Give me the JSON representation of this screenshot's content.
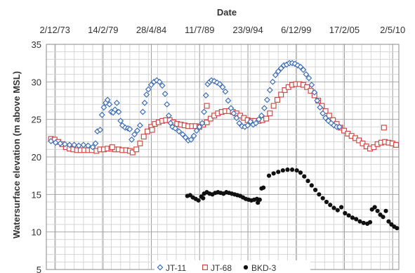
{
  "chart_data": {
    "type": "scatter",
    "title": "",
    "xlabel": "Date",
    "ylabel": "Watersurface elevation (m above MSL)",
    "x_axis_position": "top",
    "x_unit": "year",
    "xlim": [
      1973.0,
      2011.0
    ],
    "ylim": [
      5,
      35
    ],
    "yticks": [
      5,
      10,
      15,
      20,
      25,
      30,
      35
    ],
    "xticks": [
      {
        "label": "2/12/73",
        "value": 1973.92
      },
      {
        "label": "14/2/79",
        "value": 1979.12
      },
      {
        "label": "28/4/84",
        "value": 1984.32
      },
      {
        "label": "11/7/89",
        "value": 1989.52
      },
      {
        "label": "23/9/94",
        "value": 1994.73
      },
      {
        "label": "6/12/99",
        "value": 1999.93
      },
      {
        "label": "17/2/05",
        "value": 2005.13
      },
      {
        "label": "2/5/10",
        "value": 2010.33
      }
    ],
    "grid": true,
    "legend_position": "bottom",
    "series": [
      {
        "name": "JT-11",
        "marker": "diamond-open",
        "color": "#3f6fb5",
        "points": [
          [
            1973.5,
            22.1
          ],
          [
            1974.0,
            21.9
          ],
          [
            1974.5,
            21.8
          ],
          [
            1975.0,
            21.7
          ],
          [
            1975.5,
            21.6
          ],
          [
            1976.0,
            21.6
          ],
          [
            1976.5,
            21.5
          ],
          [
            1977.0,
            21.6
          ],
          [
            1977.5,
            21.5
          ],
          [
            1978.0,
            21.3
          ],
          [
            1978.3,
            21.8
          ],
          [
            1978.5,
            23.4
          ],
          [
            1978.8,
            23.6
          ],
          [
            1979.0,
            25.6
          ],
          [
            1979.2,
            26.6
          ],
          [
            1979.4,
            27.2
          ],
          [
            1979.6,
            27.6
          ],
          [
            1979.8,
            27.0
          ],
          [
            1980.0,
            26.0
          ],
          [
            1980.2,
            25.9
          ],
          [
            1980.4,
            26.3
          ],
          [
            1980.6,
            27.2
          ],
          [
            1980.8,
            26.0
          ],
          [
            1981.0,
            24.8
          ],
          [
            1981.2,
            24.2
          ],
          [
            1981.5,
            23.9
          ],
          [
            1981.8,
            23.8
          ],
          [
            1982.0,
            23.7
          ],
          [
            1982.2,
            22.3
          ],
          [
            1982.5,
            23.0
          ],
          [
            1982.8,
            23.5
          ],
          [
            1983.1,
            24.2
          ],
          [
            1983.4,
            26.0
          ],
          [
            1983.6,
            27.2
          ],
          [
            1983.8,
            28.3
          ],
          [
            1984.0,
            29.0
          ],
          [
            1984.3,
            29.6
          ],
          [
            1984.6,
            30.0
          ],
          [
            1984.9,
            30.2
          ],
          [
            1985.2,
            30.0
          ],
          [
            1985.5,
            29.5
          ],
          [
            1985.8,
            28.4
          ],
          [
            1986.0,
            27.0
          ],
          [
            1986.2,
            25.5
          ],
          [
            1986.4,
            24.5
          ],
          [
            1986.6,
            24.0
          ],
          [
            1986.9,
            23.8
          ],
          [
            1987.3,
            23.4
          ],
          [
            1987.7,
            23.0
          ],
          [
            1988.0,
            22.6
          ],
          [
            1988.3,
            22.2
          ],
          [
            1988.6,
            22.3
          ],
          [
            1988.9,
            22.8
          ],
          [
            1989.2,
            23.5
          ],
          [
            1989.5,
            24.0
          ],
          [
            1989.8,
            24.5
          ],
          [
            1990.0,
            26.0
          ],
          [
            1990.2,
            28.2
          ],
          [
            1990.4,
            29.7
          ],
          [
            1990.6,
            30.0
          ],
          [
            1990.8,
            30.2
          ],
          [
            1991.1,
            30.1
          ],
          [
            1991.4,
            29.9
          ],
          [
            1991.7,
            29.7
          ],
          [
            1992.0,
            29.3
          ],
          [
            1992.3,
            28.7
          ],
          [
            1992.6,
            27.5
          ],
          [
            1992.9,
            26.5
          ],
          [
            1993.2,
            25.8
          ],
          [
            1993.5,
            25.2
          ],
          [
            1993.8,
            24.5
          ],
          [
            1994.1,
            24.1
          ],
          [
            1994.4,
            24.0
          ],
          [
            1994.7,
            24.2
          ],
          [
            1995.0,
            24.7
          ],
          [
            1995.3,
            24.3
          ],
          [
            1995.6,
            24.5
          ],
          [
            1995.9,
            25.0
          ],
          [
            1996.2,
            25.5
          ],
          [
            1996.5,
            26.5
          ],
          [
            1996.8,
            27.6
          ],
          [
            1997.1,
            28.9
          ],
          [
            1997.4,
            30.0
          ],
          [
            1997.7,
            30.9
          ],
          [
            1998.0,
            31.4
          ],
          [
            1998.3,
            31.8
          ],
          [
            1998.6,
            32.2
          ],
          [
            1998.9,
            32.3
          ],
          [
            1999.2,
            32.5
          ],
          [
            1999.5,
            32.5
          ],
          [
            1999.8,
            32.4
          ],
          [
            2000.1,
            32.2
          ],
          [
            2000.4,
            32.0
          ],
          [
            2000.7,
            31.6
          ],
          [
            2001.0,
            31.0
          ],
          [
            2001.3,
            30.5
          ],
          [
            2001.6,
            29.6
          ],
          [
            2001.9,
            28.6
          ],
          [
            2002.2,
            27.5
          ],
          [
            2002.5,
            26.6
          ],
          [
            2002.8,
            25.8
          ],
          [
            2003.1,
            25.2
          ],
          [
            2003.4,
            24.8
          ],
          [
            2003.7,
            24.5
          ],
          [
            2004.0,
            24.2
          ],
          [
            2004.3,
            24.0
          ],
          [
            2004.6,
            24.0
          ]
        ]
      },
      {
        "name": "JT-68",
        "marker": "square-open",
        "color": "#d04a45",
        "points": [
          [
            1973.5,
            22.4
          ],
          [
            1973.9,
            22.3
          ],
          [
            1974.3,
            22.0
          ],
          [
            1974.7,
            21.7
          ],
          [
            1975.1,
            21.3
          ],
          [
            1975.5,
            21.1
          ],
          [
            1975.9,
            21.0
          ],
          [
            1976.3,
            20.9
          ],
          [
            1976.7,
            20.9
          ],
          [
            1977.1,
            20.9
          ],
          [
            1977.5,
            20.9
          ],
          [
            1977.9,
            20.9
          ],
          [
            1978.4,
            20.8
          ],
          [
            1978.8,
            21.0
          ],
          [
            1979.2,
            21.0
          ],
          [
            1979.6,
            21.1
          ],
          [
            1980.0,
            21.1
          ],
          [
            1980.4,
            21.0
          ],
          [
            1980.8,
            21.0
          ],
          [
            1981.2,
            20.9
          ],
          [
            1981.6,
            20.9
          ],
          [
            1982.0,
            20.8
          ],
          [
            1982.3,
            20.6
          ],
          [
            1982.7,
            21.0
          ],
          [
            1983.1,
            21.8
          ],
          [
            1983.5,
            22.7
          ],
          [
            1983.9,
            23.4
          ],
          [
            1984.3,
            24.0
          ],
          [
            1984.7,
            24.4
          ],
          [
            1985.1,
            24.6
          ],
          [
            1985.5,
            24.8
          ],
          [
            1985.9,
            24.9
          ],
          [
            1986.3,
            24.9
          ],
          [
            1986.7,
            24.6
          ],
          [
            1987.1,
            24.4
          ],
          [
            1987.5,
            24.3
          ],
          [
            1987.9,
            24.2
          ],
          [
            1988.3,
            24.1
          ],
          [
            1988.7,
            24.1
          ],
          [
            1989.1,
            24.1
          ],
          [
            1989.5,
            24.0
          ],
          [
            1989.9,
            24.3
          ],
          [
            1990.3,
            24.6
          ],
          [
            1990.7,
            25.1
          ],
          [
            1991.1,
            25.5
          ],
          [
            1991.5,
            25.8
          ],
          [
            1991.9,
            26.0
          ],
          [
            1992.3,
            26.1
          ],
          [
            1992.7,
            26.1
          ],
          [
            1993.1,
            26.0
          ],
          [
            1993.5,
            25.8
          ],
          [
            1993.9,
            25.5
          ],
          [
            1994.3,
            25.2
          ],
          [
            1994.7,
            24.9
          ],
          [
            1995.1,
            24.8
          ],
          [
            1995.5,
            24.8
          ],
          [
            1995.9,
            24.8
          ],
          [
            1996.3,
            24.9
          ],
          [
            1996.7,
            25.1
          ],
          [
            1997.1,
            25.8
          ],
          [
            1997.5,
            26.8
          ],
          [
            1997.9,
            27.6
          ],
          [
            1998.3,
            28.3
          ],
          [
            1998.7,
            28.9
          ],
          [
            1999.1,
            29.3
          ],
          [
            1999.5,
            29.6
          ],
          [
            1999.9,
            29.7
          ],
          [
            2000.3,
            29.7
          ],
          [
            2000.7,
            29.6
          ],
          [
            2001.1,
            29.3
          ],
          [
            2001.5,
            28.8
          ],
          [
            2001.9,
            28.2
          ],
          [
            2002.3,
            27.5
          ],
          [
            2002.7,
            26.8
          ],
          [
            2003.1,
            26.1
          ],
          [
            2003.5,
            25.5
          ],
          [
            2003.9,
            24.9
          ],
          [
            2004.3,
            24.4
          ],
          [
            2004.7,
            23.9
          ],
          [
            2005.1,
            23.5
          ],
          [
            2005.5,
            23.1
          ],
          [
            2005.9,
            22.8
          ],
          [
            2006.3,
            22.5
          ],
          [
            2006.7,
            22.2
          ],
          [
            2007.1,
            21.8
          ],
          [
            2007.5,
            21.4
          ],
          [
            2007.9,
            21.1
          ],
          [
            2008.3,
            21.3
          ],
          [
            2008.7,
            21.7
          ],
          [
            2009.1,
            21.9
          ],
          [
            2009.5,
            22.0
          ],
          [
            2009.9,
            21.9
          ],
          [
            2010.3,
            21.8
          ],
          [
            2010.7,
            21.6
          ],
          [
            2009.4,
            23.9
          ],
          [
            1980.1,
            21.3
          ],
          [
            1984.4,
            23.6
          ],
          [
            1990.3,
            26.8
          ]
        ]
      },
      {
        "name": "BKD-3",
        "marker": "circle-filled",
        "color": "#111111",
        "points": [
          [
            1988.5,
            14.9
          ],
          [
            1988.8,
            14.6
          ],
          [
            1989.1,
            14.4
          ],
          [
            1989.4,
            14.2
          ],
          [
            1989.7,
            14.7
          ],
          [
            1990.0,
            15.1
          ],
          [
            1990.3,
            15.3
          ],
          [
            1990.6,
            15.1
          ],
          [
            1990.9,
            15.0
          ],
          [
            1991.2,
            15.2
          ],
          [
            1991.5,
            15.3
          ],
          [
            1991.8,
            15.2
          ],
          [
            1992.1,
            15.1
          ],
          [
            1992.4,
            15.3
          ],
          [
            1992.7,
            15.2
          ],
          [
            1993.0,
            15.1
          ],
          [
            1993.3,
            15.0
          ],
          [
            1993.6,
            14.9
          ],
          [
            1993.9,
            14.8
          ],
          [
            1994.2,
            14.6
          ],
          [
            1994.5,
            14.4
          ],
          [
            1994.8,
            14.3
          ],
          [
            1995.1,
            14.2
          ],
          [
            1995.4,
            14.3
          ],
          [
            1995.7,
            14.4
          ],
          [
            1996.0,
            14.3
          ],
          [
            1996.2,
            15.8
          ],
          [
            1996.4,
            15.9
          ],
          [
            1997.0,
            17.5
          ],
          [
            1997.5,
            17.8
          ],
          [
            1998.0,
            18.0
          ],
          [
            1998.5,
            18.2
          ],
          [
            1999.0,
            18.3
          ],
          [
            1999.5,
            18.3
          ],
          [
            2000.0,
            18.2
          ],
          [
            2000.4,
            17.9
          ],
          [
            2000.8,
            17.4
          ],
          [
            2001.2,
            16.8
          ],
          [
            2001.6,
            16.2
          ],
          [
            2002.0,
            15.6
          ],
          [
            2002.4,
            15.0
          ],
          [
            2002.8,
            14.5
          ],
          [
            2003.2,
            14.0
          ],
          [
            2003.6,
            13.6
          ],
          [
            2004.0,
            13.2
          ],
          [
            2004.4,
            12.9
          ],
          [
            2004.8,
            13.3
          ],
          [
            2005.2,
            12.5
          ],
          [
            2005.6,
            12.2
          ],
          [
            2006.0,
            11.9
          ],
          [
            2006.4,
            11.7
          ],
          [
            2006.8,
            11.4
          ],
          [
            2007.2,
            11.2
          ],
          [
            2007.6,
            11.1
          ],
          [
            2007.9,
            11.3
          ],
          [
            2008.1,
            13.0
          ],
          [
            2008.4,
            13.3
          ],
          [
            2008.7,
            12.8
          ],
          [
            2009.0,
            12.3
          ],
          [
            2009.3,
            12.0
          ],
          [
            2009.6,
            12.8
          ],
          [
            2009.9,
            11.4
          ],
          [
            2010.2,
            11.0
          ],
          [
            2010.5,
            10.7
          ],
          [
            2010.8,
            10.5
          ],
          [
            1988.2,
            14.8
          ],
          [
            1989.9,
            14.5
          ],
          [
            1995.8,
            13.9
          ]
        ]
      }
    ]
  }
}
